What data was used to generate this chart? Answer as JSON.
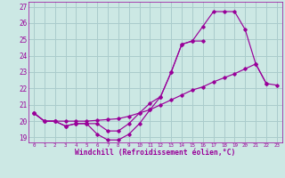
{
  "xlabel": "Windchill (Refroidissement éolien,°C)",
  "bg_color": "#cce8e4",
  "grid_color": "#aacccc",
  "line_color": "#990099",
  "xlim": [
    -0.5,
    23.5
  ],
  "ylim": [
    18.7,
    27.3
  ],
  "yticks": [
    19,
    20,
    21,
    22,
    23,
    24,
    25,
    26,
    27
  ],
  "xticks": [
    0,
    1,
    2,
    3,
    4,
    5,
    6,
    7,
    8,
    9,
    10,
    11,
    12,
    13,
    14,
    15,
    16,
    17,
    18,
    19,
    20,
    21,
    22,
    23
  ],
  "line1_x": [
    0,
    1,
    2,
    3,
    4,
    5,
    6,
    7,
    8,
    9,
    10,
    11,
    12,
    13,
    14,
    15,
    16
  ],
  "line1_y": [
    20.5,
    20.0,
    20.0,
    19.7,
    19.85,
    19.85,
    19.2,
    18.85,
    18.85,
    19.2,
    19.85,
    20.7,
    21.5,
    23.0,
    24.7,
    24.9,
    24.9
  ],
  "line2_x": [
    0,
    1,
    2,
    3,
    4,
    5,
    6,
    7,
    8,
    9,
    10,
    11,
    12,
    13,
    14,
    15,
    16,
    17,
    18,
    19,
    20,
    21,
    22
  ],
  "line2_y": [
    20.5,
    20.0,
    20.0,
    19.7,
    19.85,
    19.85,
    19.85,
    19.4,
    19.4,
    19.85,
    20.5,
    21.1,
    21.5,
    23.0,
    24.7,
    24.9,
    25.8,
    26.7,
    26.7,
    26.7,
    25.6,
    23.5,
    22.3
  ],
  "line3_x": [
    0,
    1,
    2,
    3,
    4,
    5,
    6,
    7,
    8,
    9,
    10,
    11,
    12,
    13,
    14,
    15,
    16,
    17,
    18,
    19,
    20,
    21,
    22,
    23
  ],
  "line3_y": [
    20.5,
    20.0,
    20.0,
    20.0,
    20.0,
    20.0,
    20.05,
    20.1,
    20.15,
    20.3,
    20.5,
    20.7,
    21.0,
    21.3,
    21.6,
    21.9,
    22.1,
    22.4,
    22.65,
    22.9,
    23.2,
    23.5,
    22.3,
    22.2
  ]
}
